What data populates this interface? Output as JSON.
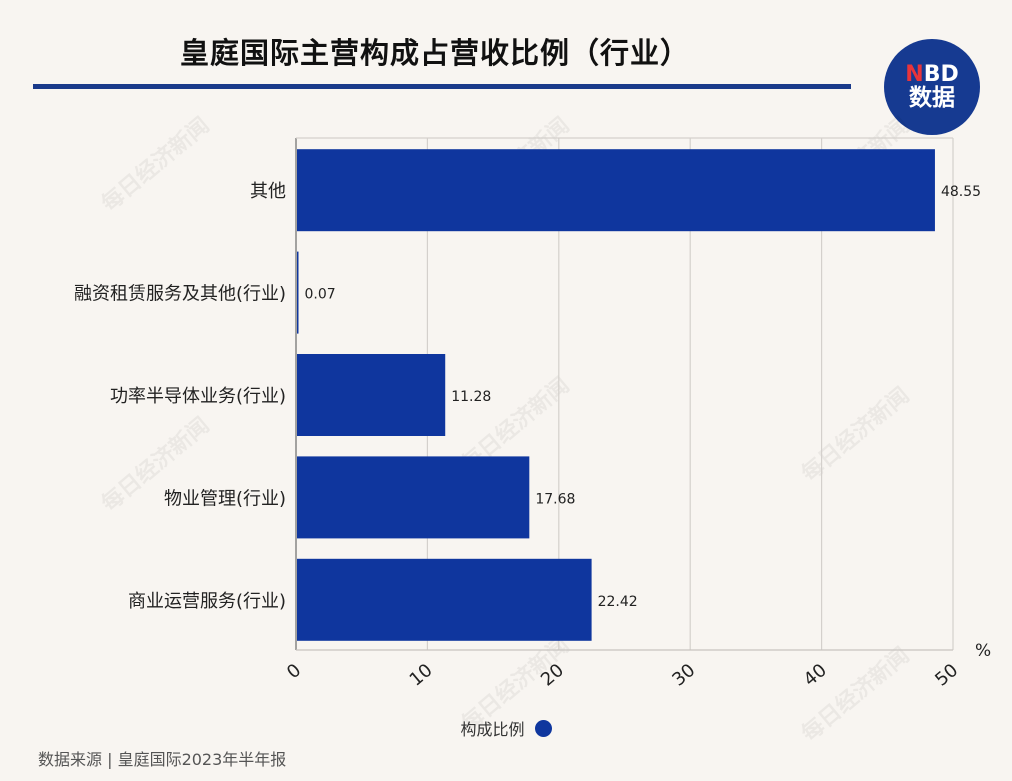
{
  "title": "皇庭国际主营构成占营收比例（行业）",
  "logo": {
    "top_n": "N",
    "top_rest": "BD",
    "bottom": "数据"
  },
  "watermark": "每日经济新闻",
  "source": "数据来源 | 皇庭国际2023年半年报",
  "legend": {
    "label": "构成比例"
  },
  "colors": {
    "bar": "#0f369e",
    "title_rule": "#1a3a8a",
    "logo_bg": "#163a91",
    "logo_n": "#e8343b",
    "background": "#f8f5f1"
  },
  "chart_data": {
    "type": "bar",
    "orientation": "horizontal",
    "categories": [
      "其他",
      "融资租赁服务及其他(行业)",
      "功率半导体业务(行业)",
      "物业管理(行业)",
      "商业运营服务(行业)"
    ],
    "series": [
      {
        "name": "构成比例",
        "values": [
          48.55,
          0.07,
          11.28,
          17.68,
          22.42
        ]
      }
    ],
    "value_labels": [
      "48.55",
      "0.07",
      "11.28",
      "17.68",
      "22.42"
    ],
    "x_unit": "%",
    "xlim": [
      0,
      50
    ],
    "xticks": [
      "0",
      "10",
      "20",
      "30",
      "40",
      "50"
    ],
    "grid": true,
    "legend_position": "bottom-center"
  }
}
